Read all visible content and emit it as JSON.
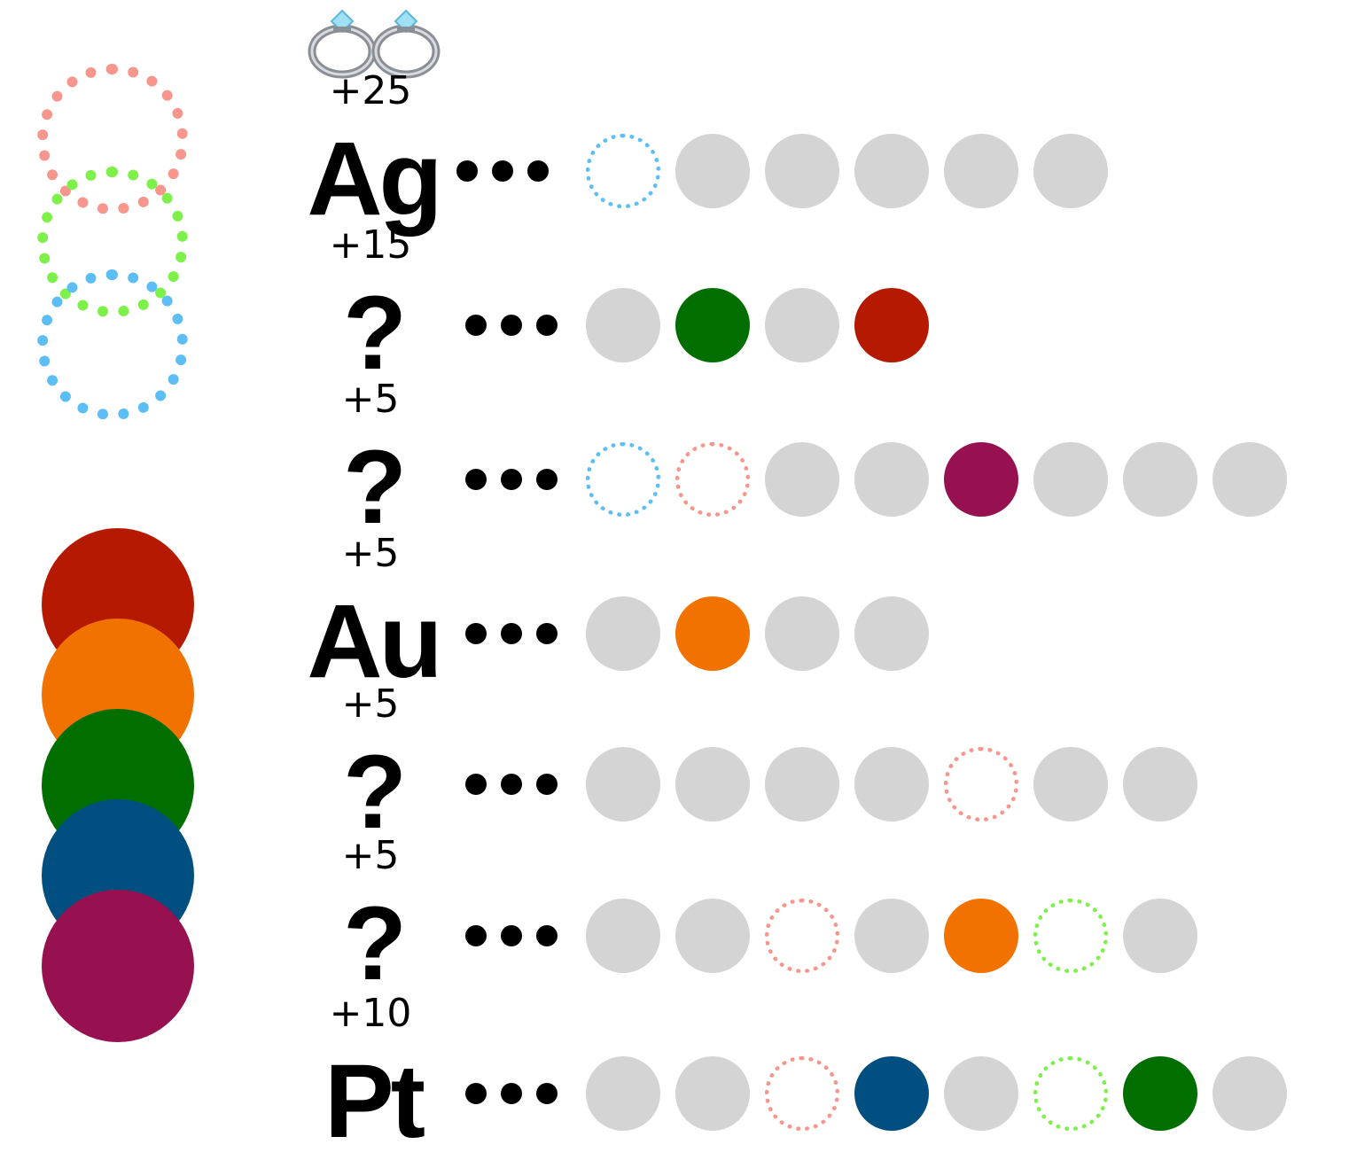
{
  "colors": {
    "gray": "#d4d4d4",
    "ring_red": "#f7968c",
    "ring_green": "#7ef04a",
    "ring_blue": "#5cbef5",
    "red": "#b51a00",
    "orange": "#f27200",
    "green": "#016e00",
    "blue": "#014f80",
    "purple": "#971050"
  },
  "legend": {
    "rings": [
      "ring_red",
      "ring_green",
      "ring_blue"
    ],
    "discs": [
      "red",
      "orange",
      "green",
      "blue",
      "purple"
    ]
  },
  "header_icon": "rings-icon",
  "rows": [
    {
      "points": "+25",
      "symbol": "Ag",
      "dots": "•••",
      "slots": [
        "ring_blue",
        "gray",
        "gray",
        "gray",
        "gray",
        "gray"
      ]
    },
    {
      "points": "+15",
      "symbol": "?",
      "dots": "•••",
      "slots": [
        "gray",
        "green",
        "gray",
        "red"
      ]
    },
    {
      "points": "+5",
      "symbol": "?",
      "dots": "•••",
      "slots": [
        "ring_blue",
        "ring_red",
        "gray",
        "gray",
        "purple",
        "gray",
        "gray",
        "gray"
      ]
    },
    {
      "points": "+5",
      "symbol": "Au",
      "dots": "•••",
      "slots": [
        "gray",
        "orange",
        "gray",
        "gray"
      ]
    },
    {
      "points": "+5",
      "symbol": "?",
      "dots": "•••",
      "slots": [
        "gray",
        "gray",
        "gray",
        "gray",
        "ring_red",
        "gray",
        "gray"
      ]
    },
    {
      "points": "+5",
      "symbol": "?",
      "dots": "•••",
      "slots": [
        "gray",
        "gray",
        "ring_red",
        "gray",
        "orange",
        "ring_green",
        "gray"
      ]
    },
    {
      "points": "+10",
      "symbol": "Pt",
      "dots": "•••",
      "slots": [
        "gray",
        "gray",
        "ring_red",
        "blue",
        "gray",
        "ring_green",
        "green",
        "gray"
      ]
    }
  ]
}
